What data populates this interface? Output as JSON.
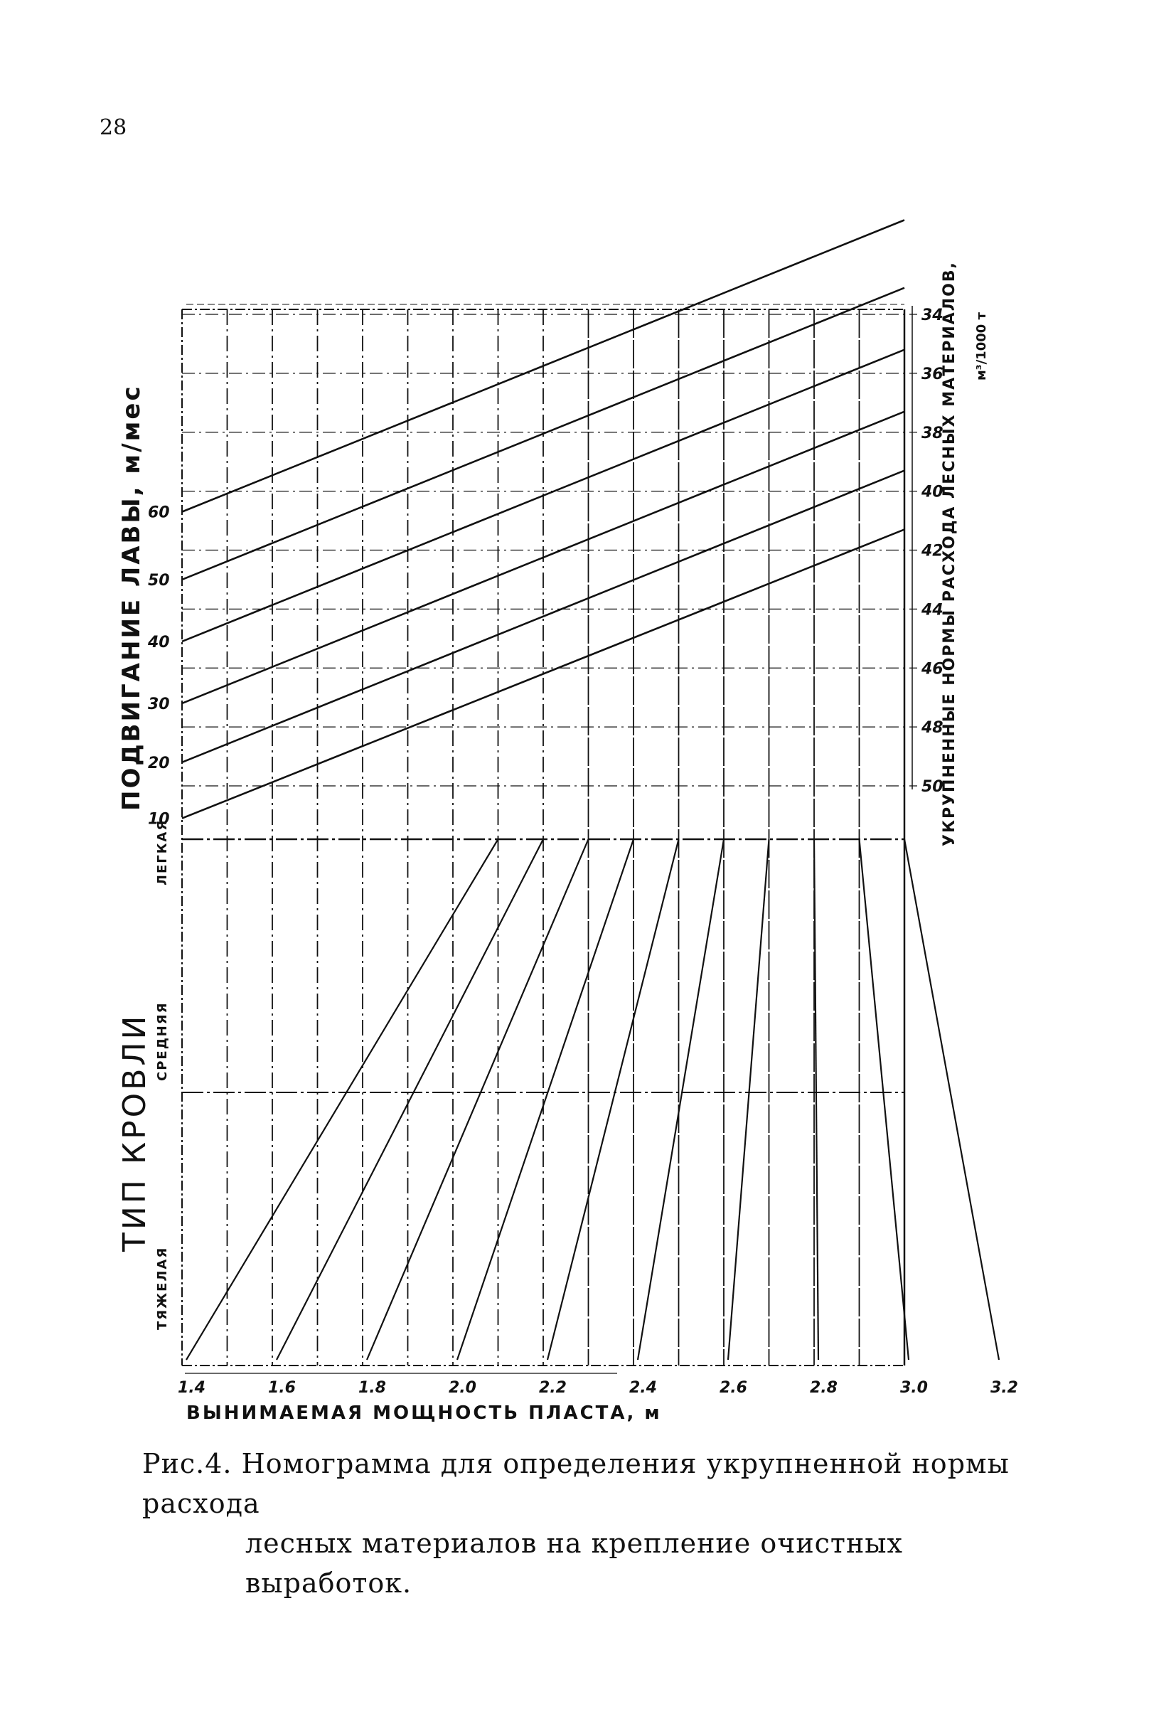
{
  "page_number": "28",
  "caption": {
    "line1": "Рис.4. Номограмма для определения укрупненной нормы расхода",
    "line2": "лесных материалов на крепление очистных выработок."
  },
  "chart_data": {
    "type": "line",
    "title": "",
    "xlabel": "ВЫНИМАЕМАЯ МОЩНОСТЬ ПЛАСТА, м",
    "x_ticks": [
      "1.4",
      "1.6",
      "1.8",
      "2.0",
      "2.2",
      "2.4",
      "2.6",
      "2.8",
      "3.0",
      "3.2"
    ],
    "top_panel": {
      "left_axis_label": "ПОДВИГАНИЕ ЛАВЫ, м/мес",
      "left_ticks": [
        10,
        20,
        30,
        40,
        50,
        60
      ],
      "right_axis_label": "УКРУПНЕННЫЕ НОРМЫ РАСХОДА ЛЕСНЫХ МАТЕРИАЛОВ,",
      "right_axis_unit": "м³/1000 т",
      "right_ticks": [
        34,
        36,
        38,
        40,
        42,
        44,
        46,
        48,
        50
      ],
      "lines_series": [
        {
          "advance": 10,
          "y_start": 51.1,
          "y_end": 41.3
        },
        {
          "advance": 20,
          "y_start": 49.2,
          "y_end": 39.3
        },
        {
          "advance": 30,
          "y_start": 47.2,
          "y_end": 37.3
        },
        {
          "advance": 40,
          "y_start": 45.1,
          "y_end": 35.2
        },
        {
          "advance": 50,
          "y_start": 43.0,
          "y_end": 33.1
        },
        {
          "advance": 60,
          "y_start": 40.7,
          "y_end": 30.8
        }
      ]
    },
    "bottom_panel": {
      "axis_label": "ТИП КРОВЛИ",
      "categories": [
        "ЛЕГКАЯ",
        "СРЕДНЯЯ",
        "ТЯЖЕЛАЯ"
      ],
      "diagonal_starts": [
        1.4,
        1.6,
        1.8,
        2.0,
        2.2,
        2.4,
        2.6,
        2.8,
        3.0,
        3.2
      ],
      "diagonal_shift": 1.4
    },
    "grid": true
  }
}
